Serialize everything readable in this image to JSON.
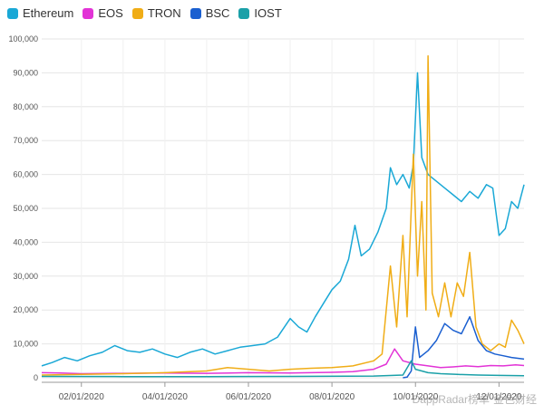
{
  "legend": [
    {
      "name": "Ethereum",
      "color": "#1aa8d6"
    },
    {
      "name": "EOS",
      "color": "#e233d6"
    },
    {
      "name": "TRON",
      "color": "#f0ad16"
    },
    {
      "name": "BSC",
      "color": "#1a5fd0"
    },
    {
      "name": "IOST",
      "color": "#1aa0a8"
    }
  ],
  "watermark": {
    "source": "DappRadar榜单",
    "brand": "金色财经"
  },
  "chart_data": {
    "type": "line",
    "x_ticks": [
      "02/01/2020",
      "04/01/2020",
      "06/01/2020",
      "08/01/2020",
      "10/01/2020",
      "12/01/2020"
    ],
    "x_tick_months": [
      1,
      3,
      5,
      7,
      9,
      11
    ],
    "x_range_months": [
      0.05,
      11.6
    ],
    "ylim": [
      0,
      100000
    ],
    "y_ticks": [
      "0",
      "10,000",
      "20,000",
      "30,000",
      "40,000",
      "50,000",
      "60,000",
      "70,000",
      "80,000",
      "90,000",
      "100,000"
    ],
    "grid": true,
    "legend_position": "top-left",
    "series": [
      {
        "name": "Ethereum",
        "color": "#1aa8d6",
        "points": [
          [
            0.05,
            3500
          ],
          [
            0.3,
            4500
          ],
          [
            0.6,
            6000
          ],
          [
            0.9,
            5000
          ],
          [
            1.2,
            6500
          ],
          [
            1.5,
            7500
          ],
          [
            1.8,
            9500
          ],
          [
            2.1,
            8000
          ],
          [
            2.4,
            7500
          ],
          [
            2.7,
            8500
          ],
          [
            3.0,
            7000
          ],
          [
            3.3,
            6000
          ],
          [
            3.6,
            7500
          ],
          [
            3.9,
            8500
          ],
          [
            4.2,
            7000
          ],
          [
            4.5,
            8000
          ],
          [
            4.8,
            9000
          ],
          [
            5.1,
            9500
          ],
          [
            5.4,
            10000
          ],
          [
            5.7,
            12000
          ],
          [
            6.0,
            17500
          ],
          [
            6.2,
            15000
          ],
          [
            6.4,
            13500
          ],
          [
            6.6,
            18000
          ],
          [
            6.8,
            22000
          ],
          [
            7.0,
            26000
          ],
          [
            7.2,
            28500
          ],
          [
            7.4,
            35000
          ],
          [
            7.55,
            45000
          ],
          [
            7.7,
            36000
          ],
          [
            7.9,
            38000
          ],
          [
            8.1,
            43000
          ],
          [
            8.3,
            50000
          ],
          [
            8.4,
            62000
          ],
          [
            8.55,
            57000
          ],
          [
            8.7,
            60000
          ],
          [
            8.85,
            56000
          ],
          [
            8.95,
            63000
          ],
          [
            9.05,
            90000
          ],
          [
            9.15,
            65000
          ],
          [
            9.3,
            60000
          ],
          [
            9.5,
            58000
          ],
          [
            9.7,
            56000
          ],
          [
            9.9,
            54000
          ],
          [
            10.1,
            52000
          ],
          [
            10.3,
            55000
          ],
          [
            10.5,
            53000
          ],
          [
            10.7,
            57000
          ],
          [
            10.85,
            56000
          ],
          [
            11.0,
            42000
          ],
          [
            11.15,
            44000
          ],
          [
            11.3,
            52000
          ],
          [
            11.45,
            50000
          ],
          [
            11.6,
            57000
          ]
        ]
      },
      {
        "name": "EOS",
        "color": "#e233d6",
        "points": [
          [
            0.05,
            1500
          ],
          [
            0.5,
            1400
          ],
          [
            1.0,
            1200
          ],
          [
            2.0,
            1300
          ],
          [
            3.0,
            1400
          ],
          [
            4.0,
            1300
          ],
          [
            5.0,
            1500
          ],
          [
            6.0,
            1400
          ],
          [
            7.0,
            1600
          ],
          [
            7.5,
            1800
          ],
          [
            8.0,
            2500
          ],
          [
            8.3,
            4000
          ],
          [
            8.5,
            8500
          ],
          [
            8.7,
            5000
          ],
          [
            9.0,
            4000
          ],
          [
            9.3,
            3500
          ],
          [
            9.6,
            3000
          ],
          [
            9.9,
            3200
          ],
          [
            10.2,
            3500
          ],
          [
            10.5,
            3300
          ],
          [
            10.8,
            3600
          ],
          [
            11.1,
            3500
          ],
          [
            11.4,
            3800
          ],
          [
            11.6,
            3600
          ]
        ]
      },
      {
        "name": "TRON",
        "color": "#f0ad16",
        "points": [
          [
            0.05,
            800
          ],
          [
            1.0,
            1000
          ],
          [
            2.0,
            1200
          ],
          [
            3.0,
            1500
          ],
          [
            4.0,
            2000
          ],
          [
            4.5,
            3000
          ],
          [
            5.0,
            2500
          ],
          [
            5.5,
            2000
          ],
          [
            6.0,
            2500
          ],
          [
            6.5,
            2800
          ],
          [
            7.0,
            3000
          ],
          [
            7.5,
            3500
          ],
          [
            8.0,
            5000
          ],
          [
            8.2,
            7000
          ],
          [
            8.4,
            33000
          ],
          [
            8.55,
            15000
          ],
          [
            8.7,
            42000
          ],
          [
            8.8,
            18000
          ],
          [
            8.95,
            66000
          ],
          [
            9.05,
            30000
          ],
          [
            9.15,
            52000
          ],
          [
            9.25,
            20000
          ],
          [
            9.3,
            95000
          ],
          [
            9.4,
            25000
          ],
          [
            9.55,
            18000
          ],
          [
            9.7,
            28000
          ],
          [
            9.85,
            18000
          ],
          [
            10.0,
            28000
          ],
          [
            10.15,
            24000
          ],
          [
            10.3,
            37000
          ],
          [
            10.45,
            15000
          ],
          [
            10.6,
            10000
          ],
          [
            10.8,
            8000
          ],
          [
            11.0,
            10000
          ],
          [
            11.15,
            9000
          ],
          [
            11.3,
            17000
          ],
          [
            11.45,
            14000
          ],
          [
            11.6,
            10000
          ]
        ]
      },
      {
        "name": "BSC",
        "color": "#1a5fd0",
        "points": [
          [
            8.7,
            0
          ],
          [
            8.8,
            200
          ],
          [
            8.9,
            2000
          ],
          [
            9.0,
            15000
          ],
          [
            9.1,
            6000
          ],
          [
            9.3,
            8000
          ],
          [
            9.5,
            11000
          ],
          [
            9.7,
            16000
          ],
          [
            9.9,
            14000
          ],
          [
            10.1,
            13000
          ],
          [
            10.3,
            18000
          ],
          [
            10.5,
            11000
          ],
          [
            10.7,
            8000
          ],
          [
            10.9,
            7000
          ],
          [
            11.1,
            6500
          ],
          [
            11.3,
            6000
          ],
          [
            11.6,
            5500
          ]
        ]
      },
      {
        "name": "IOST",
        "color": "#1aa0a8",
        "points": [
          [
            0.05,
            400
          ],
          [
            2.0,
            350
          ],
          [
            4.0,
            350
          ],
          [
            6.0,
            400
          ],
          [
            8.0,
            500
          ],
          [
            8.7,
            800
          ],
          [
            8.9,
            5000
          ],
          [
            9.0,
            2500
          ],
          [
            9.3,
            1500
          ],
          [
            9.6,
            1200
          ],
          [
            10.0,
            1000
          ],
          [
            10.5,
            800
          ],
          [
            11.0,
            700
          ],
          [
            11.6,
            600
          ]
        ]
      }
    ]
  }
}
